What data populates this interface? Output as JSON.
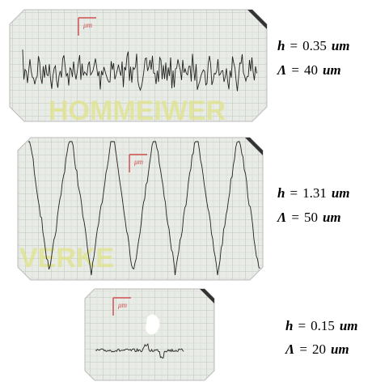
{
  "panels": [
    {
      "scale_label": "μm",
      "watermark": "HOMMEIWER",
      "h": {
        "symbol": "h",
        "equals": "=",
        "value": "0.35",
        "unit": "um"
      },
      "lambda": {
        "symbol": "Λ",
        "equals": "=",
        "value": "40",
        "unit": "um"
      }
    },
    {
      "scale_label": "μm",
      "watermark": "VERKE",
      "h": {
        "symbol": "h",
        "equals": "=",
        "value": "1.31",
        "unit": "um"
      },
      "lambda": {
        "symbol": "Λ",
        "equals": "=",
        "value": "50",
        "unit": "um"
      }
    },
    {
      "scale_label": "μm",
      "h": {
        "symbol": "h",
        "equals": "=",
        "value": "0.15",
        "unit": "um"
      },
      "lambda": {
        "symbol": "Λ",
        "equals": "=",
        "value": "20",
        "unit": "um"
      }
    }
  ]
}
